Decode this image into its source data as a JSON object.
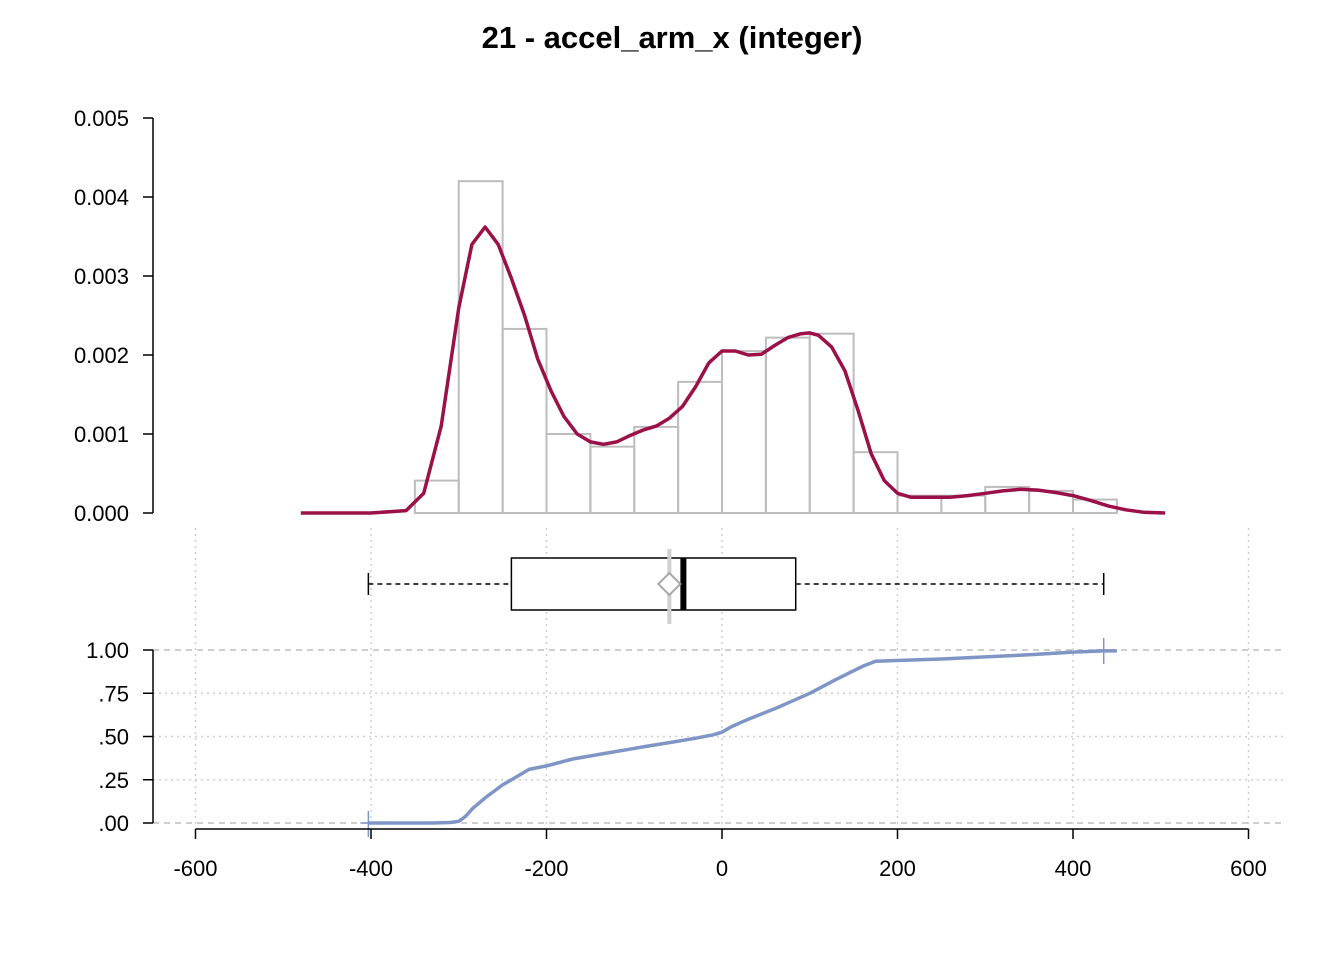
{
  "title": "21 - accel_arm_x (integer)",
  "colors": {
    "histogram_stroke": "#bdbdbd",
    "density_line": "#9b1048",
    "ecdf_line": "#7f95c6",
    "grid": "#cfcfcf",
    "ref_line": "#bdbdbd",
    "box_stroke": "#000000",
    "mean_marker": "#a8a8a8"
  },
  "chart_data": [
    {
      "type": "bar",
      "subtype": "histogram",
      "bin_edges": [
        -350,
        -300,
        -250,
        -200,
        -150,
        -100,
        -50,
        0,
        50,
        100,
        150,
        200,
        250,
        300,
        350,
        400,
        450
      ],
      "values": [
        0.00041,
        0.0042,
        0.00233,
        0.001,
        0.00084,
        0.00109,
        0.00166,
        0.00205,
        0.00222,
        0.00227,
        0.00077,
        0.00022,
        0.00022,
        0.00033,
        0.00028,
        0.00017
      ],
      "ylim": [
        0,
        0.005
      ],
      "yticks": [
        "0.000",
        "0.001",
        "0.002",
        "0.003",
        "0.004",
        "0.005"
      ],
      "ytick_values": [
        0,
        0.001,
        0.002,
        0.003,
        0.004,
        0.005
      ]
    },
    {
      "type": "line",
      "subtype": "density",
      "x": [
        -480,
        -400,
        -360,
        -340,
        -320,
        -300,
        -285,
        -270,
        -255,
        -240,
        -225,
        -210,
        -195,
        -180,
        -165,
        -150,
        -135,
        -120,
        -105,
        -90,
        -75,
        -60,
        -45,
        -30,
        -15,
        0,
        15,
        30,
        45,
        60,
        75,
        90,
        100,
        110,
        125,
        140,
        155,
        170,
        185,
        200,
        215,
        230,
        245,
        260,
        280,
        300,
        320,
        340,
        360,
        380,
        400,
        420,
        440,
        460,
        480,
        505
      ],
      "y": [
        0.0,
        0.0,
        3e-05,
        0.00025,
        0.0011,
        0.0026,
        0.0034,
        0.00362,
        0.0034,
        0.00297,
        0.0025,
        0.00195,
        0.00155,
        0.00122,
        0.001,
        0.0009,
        0.00087,
        0.0009,
        0.00098,
        0.00105,
        0.0011,
        0.0012,
        0.00135,
        0.0016,
        0.0019,
        0.00205,
        0.00205,
        0.002,
        0.00201,
        0.00212,
        0.00222,
        0.00227,
        0.00228,
        0.00225,
        0.0021,
        0.0018,
        0.0013,
        0.00075,
        0.00041,
        0.00025,
        0.0002,
        0.0002,
        0.0002,
        0.0002,
        0.00022,
        0.00025,
        0.00028,
        0.0003,
        0.00029,
        0.00026,
        0.00022,
        0.00016,
        9e-05,
        4e-05,
        1e-05,
        0.0
      ]
    },
    {
      "type": "box",
      "min": -403,
      "q1": -240,
      "median": -44,
      "q3": 84,
      "max": 435,
      "mean": -60
    },
    {
      "type": "line",
      "subtype": "ecdf",
      "x": [
        -403,
        -330,
        -310,
        -300,
        -292,
        -284,
        -270,
        -250,
        -235,
        -220,
        -200,
        -170,
        -130,
        -90,
        -60,
        -30,
        -10,
        0,
        10,
        30,
        60,
        100,
        130,
        160,
        175,
        250,
        300,
        350,
        400,
        435,
        450
      ],
      "y": [
        0.0,
        0.0,
        0.003,
        0.01,
        0.04,
        0.085,
        0.145,
        0.22,
        0.265,
        0.31,
        0.33,
        0.37,
        0.405,
        0.44,
        0.465,
        0.49,
        0.51,
        0.525,
        0.555,
        0.6,
        0.66,
        0.75,
        0.83,
        0.905,
        0.935,
        0.948,
        0.96,
        0.972,
        0.988,
        0.995,
        0.995
      ],
      "ylim": [
        0,
        1
      ],
      "yticks": [
        ".00",
        ".25",
        ".50",
        ".75",
        "1.00"
      ],
      "ytick_values": [
        0,
        0.25,
        0.5,
        0.75,
        1
      ]
    }
  ],
  "x_axis": {
    "ticks": [
      "-600",
      "-400",
      "-200",
      "0",
      "200",
      "400",
      "600"
    ],
    "tick_values": [
      -600,
      -400,
      -200,
      0,
      200,
      400,
      600
    ],
    "xlim": [
      -650,
      650
    ]
  }
}
